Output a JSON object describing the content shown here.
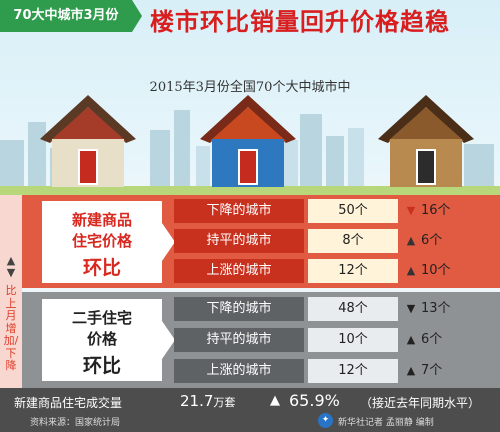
{
  "header": {
    "badge": "70大中城市3月份",
    "title": "楼市环比销量回升价格趋稳",
    "subtitle": "2015年3月份全国70个大中城市中"
  },
  "colors": {
    "red_accent": "#e15a42",
    "gray_section": "#8f9294",
    "green_badge": "#2e9b4d",
    "house_red": "#a53c2a",
    "house_blue": "#2e78bf",
    "house_brown": "#8a5a2c"
  },
  "side_note": "比上月增加/下降",
  "new_homes": {
    "label_line1": "新建商品",
    "label_line2": "住宅价格",
    "label_line3": "环比",
    "rows": [
      {
        "name": "下降的城市",
        "value": "50个",
        "change_icon": "down-arrow",
        "change": "16个"
      },
      {
        "name": "持平的城市",
        "value": "8个",
        "change_icon": "up-arrow",
        "change": "6个"
      },
      {
        "name": "上涨的城市",
        "value": "12个",
        "change_icon": "up-arrow",
        "change": "10个"
      }
    ]
  },
  "second_hand": {
    "label_line1": "二手住宅",
    "label_line2": "价格",
    "label_line3": "环比",
    "rows": [
      {
        "name": "下降的城市",
        "value": "48个",
        "change_icon": "down-arrow",
        "change": "13个"
      },
      {
        "name": "持平的城市",
        "value": "10个",
        "change_icon": "up-arrow",
        "change": "6个"
      },
      {
        "name": "上涨的城市",
        "value": "12个",
        "change_icon": "up-arrow",
        "change": "7个"
      }
    ]
  },
  "footer": {
    "label": "新建商品住宅成交量",
    "volume_number": "21.7",
    "volume_unit": "万套",
    "growth": "65.9%",
    "note": "（接近去年同期水平）",
    "source": "资料来源：国家统计局",
    "credit": "新华社记者  孟丽静  编制"
  }
}
